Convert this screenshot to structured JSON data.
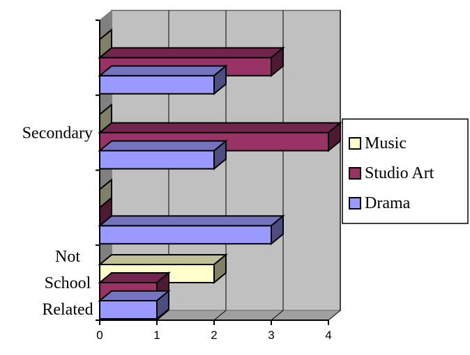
{
  "chart_data": {
    "type": "bar",
    "orientation": "horizontal",
    "three_d": true,
    "categories": [
      [
        "Not",
        "School",
        "Related"
      ],
      [
        ""
      ],
      [
        "Secondary"
      ],
      [
        ""
      ]
    ],
    "series": [
      {
        "name": "Music",
        "values": [
          2,
          0,
          0,
          0
        ],
        "color": "#FFFFCC"
      },
      {
        "name": "Studio Art",
        "values": [
          1,
          0,
          4,
          3
        ],
        "color": "#993366"
      },
      {
        "name": "Drama",
        "values": [
          1,
          3,
          2,
          2
        ],
        "color": "#9999FF"
      }
    ],
    "xlim": [
      0,
      4
    ],
    "xticks": [
      "0",
      "1",
      "2",
      "3",
      "4"
    ],
    "grid": true,
    "legend_position": "right",
    "title": "",
    "xlabel": "",
    "ylabel": ""
  }
}
